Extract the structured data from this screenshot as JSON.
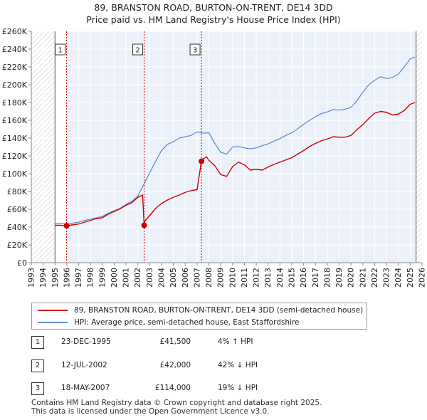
{
  "title": {
    "line1": "89, BRANSTON ROAD, BURTON-ON-TRENT, DE14 3DD",
    "line2": "Price paid vs. HM Land Registry's House Price Index (HPI)"
  },
  "colors": {
    "property": "#cc0000",
    "hpi": "#5b8fd0",
    "shade": "#dde6f4",
    "hatch": "#c8c8c8"
  },
  "chart_data": {
    "type": "line",
    "xlim": [
      1993.0,
      2026.0
    ],
    "ylim": [
      0,
      260000
    ],
    "y_ticks": [
      0,
      20000,
      40000,
      60000,
      80000,
      100000,
      120000,
      140000,
      160000,
      180000,
      200000,
      220000,
      240000,
      260000
    ],
    "y_tick_labels": [
      "£0",
      "£20K",
      "£40K",
      "£60K",
      "£80K",
      "£100K",
      "£120K",
      "£140K",
      "£160K",
      "£180K",
      "£200K",
      "£220K",
      "£240K",
      "£260K"
    ],
    "x_ticks": [
      1993,
      1994,
      1995,
      1996,
      1997,
      1998,
      1999,
      2000,
      2001,
      2002,
      2003,
      2004,
      2005,
      2006,
      2007,
      2008,
      2009,
      2010,
      2011,
      2012,
      2013,
      2014,
      2015,
      2016,
      2017,
      2018,
      2019,
      2020,
      2021,
      2022,
      2023,
      2024,
      2025,
      2026
    ],
    "x_tick_labels": [
      "1993",
      "1994",
      "1995",
      "1996",
      "1997",
      "1998",
      "1999",
      "2000",
      "2001",
      "2002",
      "2003",
      "2004",
      "2005",
      "2006",
      "2007",
      "2008",
      "2009",
      "2010",
      "2011",
      "2012",
      "2013",
      "2014",
      "2015",
      "2016",
      "2017",
      "2018",
      "2019",
      "2020",
      "2021",
      "2022",
      "2023",
      "2024",
      "2025",
      "2026"
    ],
    "data_start": 1995.0,
    "data_end": 2025.5,
    "series": [
      {
        "name": "89, BRANSTON ROAD, BURTON-ON-TRENT, DE14 3DD (semi-detached house)",
        "x": [
          1995.0,
          1995.5,
          1995.98,
          1996.5,
          1997.0,
          1997.5,
          1998.0,
          1998.5,
          1999.0,
          1999.5,
          2000.0,
          2000.5,
          2001.0,
          2001.5,
          2002.0,
          2002.4,
          2002.53,
          2002.6,
          2003.0,
          2003.5,
          2004.0,
          2004.5,
          2005.0,
          2005.5,
          2006.0,
          2006.5,
          2007.0,
          2007.37,
          2007.5,
          2007.8,
          2008.0,
          2008.5,
          2009.0,
          2009.5,
          2010.0,
          2010.5,
          2011.0,
          2011.5,
          2012.0,
          2012.5,
          2013.0,
          2013.5,
          2014.0,
          2014.5,
          2015.0,
          2015.5,
          2016.0,
          2016.5,
          2017.0,
          2017.5,
          2018.0,
          2018.5,
          2019.0,
          2019.5,
          2020.0,
          2020.5,
          2021.0,
          2021.5,
          2022.0,
          2022.5,
          2023.0,
          2023.5,
          2024.0,
          2024.5,
          2025.0,
          2025.4
        ],
        "values": [
          42000,
          42000,
          41500,
          42500,
          43500,
          45500,
          47500,
          49500,
          50500,
          54500,
          57500,
          60500,
          64500,
          67500,
          73500,
          76000,
          42000,
          47000,
          53000,
          61000,
          66500,
          70500,
          73500,
          76000,
          79000,
          81000,
          82000,
          114000,
          116500,
          119000,
          115000,
          109000,
          99000,
          97000,
          108000,
          113000,
          110000,
          104000,
          105000,
          104000,
          107500,
          110500,
          113000,
          115500,
          118000,
          122000,
          126000,
          130500,
          134000,
          137000,
          139000,
          141500,
          141000,
          141000,
          143000,
          149500,
          155000,
          162000,
          168000,
          170000,
          169000,
          166000,
          167000,
          171000,
          178000,
          180000
        ]
      },
      {
        "name": "HPI: Average price, semi-detached house, East Staffordshire",
        "x": [
          1995.0,
          1995.5,
          1996.0,
          1996.5,
          1997.0,
          1997.5,
          1998.0,
          1998.5,
          1999.0,
          1999.5,
          2000.0,
          2000.5,
          2001.0,
          2001.5,
          2002.0,
          2002.5,
          2003.0,
          2003.5,
          2004.0,
          2004.5,
          2005.0,
          2005.5,
          2006.0,
          2006.5,
          2007.0,
          2007.5,
          2008.0,
          2008.5,
          2009.0,
          2009.5,
          2010.0,
          2010.5,
          2011.0,
          2011.5,
          2012.0,
          2012.5,
          2013.0,
          2013.5,
          2014.0,
          2014.5,
          2015.0,
          2015.5,
          2016.0,
          2016.5,
          2017.0,
          2017.5,
          2018.0,
          2018.5,
          2019.0,
          2019.5,
          2020.0,
          2020.5,
          2021.0,
          2021.5,
          2022.0,
          2022.5,
          2023.0,
          2023.5,
          2024.0,
          2024.5,
          2025.0,
          2025.4
        ],
        "values": [
          44000,
          44500,
          43000,
          44500,
          45500,
          47500,
          49000,
          50500,
          52000,
          55500,
          58500,
          61000,
          65500,
          69000,
          75000,
          88000,
          101000,
          114000,
          126000,
          133000,
          136000,
          140000,
          141500,
          143000,
          147000,
          145500,
          146000,
          134000,
          124000,
          122000,
          130000,
          130500,
          129000,
          128000,
          129000,
          131500,
          133500,
          136500,
          139500,
          143000,
          146000,
          150500,
          155500,
          160000,
          164000,
          167500,
          169500,
          172000,
          171500,
          172500,
          174500,
          182000,
          191500,
          200000,
          205000,
          209000,
          207000,
          208000,
          212000,
          220000,
          229000,
          231000
        ]
      }
    ],
    "sales": [
      {
        "marker": "1",
        "x": 1995.98,
        "price": 41500
      },
      {
        "marker": "2",
        "x": 2002.53,
        "price": 42000
      },
      {
        "marker": "3",
        "x": 2007.37,
        "price": 114000
      }
    ]
  },
  "legend": {
    "property": "89, BRANSTON ROAD, BURTON-ON-TRENT, DE14 3DD (semi-detached house)",
    "hpi": "HPI: Average price, semi-detached house, East Staffordshire"
  },
  "sales_table": [
    {
      "marker": "1",
      "date": "23-DEC-1995",
      "price": "£41,500",
      "hpi": "4% ↑ HPI"
    },
    {
      "marker": "2",
      "date": "12-JUL-2002",
      "price": "£42,000",
      "hpi": "42% ↓ HPI"
    },
    {
      "marker": "3",
      "date": "18-MAY-2007",
      "price": "£114,000",
      "hpi": "19% ↓ HPI"
    }
  ],
  "footer": {
    "line1": "Contains HM Land Registry data © Crown copyright and database right 2025.",
    "line2": "This data is licensed under the Open Government Licence v3.0."
  }
}
